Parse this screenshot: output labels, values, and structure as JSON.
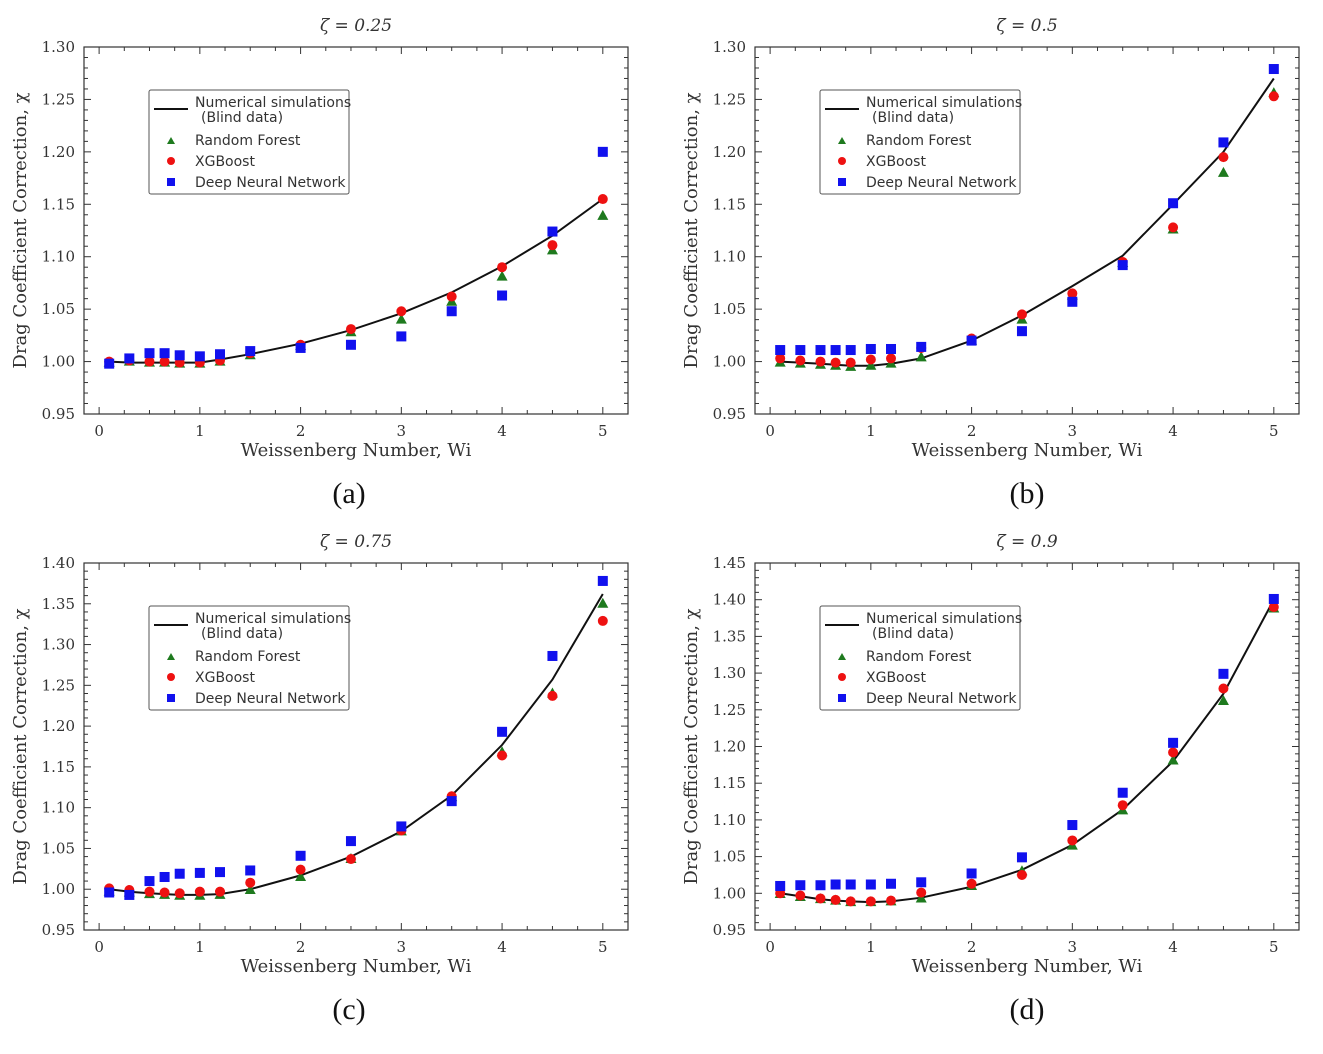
{
  "figure": {
    "panels": [
      {
        "title": "ζ = 0.25",
        "tag": "(a)"
      },
      {
        "title": "ζ = 0.5",
        "tag": "(b)"
      },
      {
        "title": "ζ = 0.75",
        "tag": "(c)"
      },
      {
        "title": "ζ = 0.9",
        "tag": "(d)"
      }
    ]
  },
  "colors": {
    "numerical": "#111111",
    "random_forest": "#1e7a1e",
    "xgboost": "#ee1111",
    "dnn": "#1111ee",
    "axis": "#333333"
  },
  "chart_data": [
    {
      "type": "scatter",
      "title": "ζ = 0.25",
      "tag": "(a)",
      "xlabel": "Weissenberg Number, Wi",
      "ylabel": "Drag Coefficient Correction, χ",
      "xlim": [
        -0.15,
        5.25
      ],
      "ylim": [
        0.95,
        1.3
      ],
      "xticks": [
        0,
        1,
        2,
        3,
        4,
        5
      ],
      "yticks": [
        0.95,
        1.0,
        1.05,
        1.1,
        1.15,
        1.2,
        1.25,
        1.3
      ],
      "legend": {
        "numerical": "Numerical simulations",
        "numerical_sub": "(Blind data)",
        "rf": "Random Forest",
        "xgb": "XGBoost",
        "dnn": "Deep Neural Network"
      },
      "x": [
        0.1,
        0.3,
        0.5,
        0.65,
        0.8,
        1.0,
        1.2,
        1.5,
        2.0,
        2.5,
        3.0,
        3.5,
        4.0,
        4.5,
        5.0
      ],
      "series": [
        {
          "name": "Numerical simulations",
          "values": [
            1.0,
            0.999,
            0.999,
            0.999,
            0.999,
            0.999,
            1.002,
            1.007,
            1.017,
            1.03,
            1.046,
            1.066,
            1.091,
            1.12,
            1.155
          ]
        },
        {
          "name": "Random Forest",
          "values": [
            0.999,
            1.0,
            0.999,
            0.999,
            0.998,
            0.998,
            1.0,
            1.006,
            1.015,
            1.028,
            1.04,
            1.057,
            1.081,
            1.106,
            1.139
          ]
        },
        {
          "name": "XGBoost",
          "values": [
            1.0,
            1.001,
            1.0,
            1.0,
            0.999,
            0.999,
            1.001,
            1.008,
            1.016,
            1.031,
            1.048,
            1.062,
            1.09,
            1.111,
            1.155
          ]
        },
        {
          "name": "Deep Neural Network",
          "values": [
            0.998,
            1.003,
            1.008,
            1.008,
            1.006,
            1.005,
            1.007,
            1.01,
            1.013,
            1.016,
            1.024,
            1.048,
            1.063,
            1.124,
            1.2
          ]
        }
      ]
    },
    {
      "type": "scatter",
      "title": "ζ = 0.5",
      "tag": "(b)",
      "xlabel": "Weissenberg Number, Wi",
      "ylabel": "Drag Coefficient Correction, χ",
      "xlim": [
        -0.15,
        5.25
      ],
      "ylim": [
        0.95,
        1.3
      ],
      "xticks": [
        0,
        1,
        2,
        3,
        4,
        5
      ],
      "yticks": [
        0.95,
        1.0,
        1.05,
        1.1,
        1.15,
        1.2,
        1.25,
        1.3
      ],
      "legend": {
        "numerical": "Numerical simulations",
        "numerical_sub": "(Blind data)",
        "rf": "Random Forest",
        "xgb": "XGBoost",
        "dnn": "Deep Neural Network"
      },
      "x": [
        0.1,
        0.3,
        0.5,
        0.65,
        0.8,
        1.0,
        1.2,
        1.5,
        2.0,
        2.5,
        3.0,
        3.5,
        4.0,
        4.5,
        5.0
      ],
      "series": [
        {
          "name": "Numerical simulations",
          "values": [
            1.0,
            0.999,
            0.998,
            0.997,
            0.996,
            0.996,
            0.998,
            1.003,
            1.02,
            1.044,
            1.072,
            1.101,
            1.15,
            1.2,
            1.27
          ]
        },
        {
          "name": "Random Forest",
          "values": [
            0.999,
            0.998,
            0.997,
            0.996,
            0.995,
            0.996,
            0.998,
            1.004,
            1.02,
            1.04,
            1.063,
            1.094,
            1.126,
            1.18,
            1.256
          ]
        },
        {
          "name": "XGBoost",
          "values": [
            1.003,
            1.001,
            1.0,
            0.999,
            0.999,
            1.002,
            1.003,
            1.013,
            1.022,
            1.045,
            1.065,
            1.095,
            1.128,
            1.195,
            1.253
          ]
        },
        {
          "name": "Deep Neural Network",
          "values": [
            1.011,
            1.011,
            1.011,
            1.011,
            1.011,
            1.012,
            1.012,
            1.014,
            1.02,
            1.029,
            1.057,
            1.092,
            1.151,
            1.209,
            1.279
          ]
        }
      ]
    },
    {
      "type": "scatter",
      "title": "ζ = 0.75",
      "tag": "(c)",
      "xlabel": "Weissenberg Number, Wi",
      "ylabel": "Drag Coefficient Correction, χ",
      "xlim": [
        -0.15,
        5.25
      ],
      "ylim": [
        0.95,
        1.4
      ],
      "xticks": [
        0,
        1,
        2,
        3,
        4,
        5
      ],
      "yticks": [
        0.95,
        1.0,
        1.05,
        1.1,
        1.15,
        1.2,
        1.25,
        1.3,
        1.35,
        1.4
      ],
      "legend": {
        "numerical": "Numerical simulations",
        "numerical_sub": "(Blind data)",
        "rf": "Random Forest",
        "xgb": "XGBoost",
        "dnn": "Deep Neural Network"
      },
      "x": [
        0.1,
        0.3,
        0.5,
        0.65,
        0.8,
        1.0,
        1.2,
        1.5,
        2.0,
        2.5,
        3.0,
        3.5,
        4.0,
        4.5,
        5.0
      ],
      "series": [
        {
          "name": "Numerical simulations",
          "values": [
            1.0,
            0.997,
            0.995,
            0.994,
            0.993,
            0.993,
            0.994,
            1.0,
            1.017,
            1.04,
            1.071,
            1.115,
            1.177,
            1.257,
            1.362
          ]
        },
        {
          "name": "Random Forest",
          "values": [
            0.997,
            0.996,
            0.994,
            0.993,
            0.992,
            0.992,
            0.993,
            0.999,
            1.015,
            1.037,
            1.071,
            1.113,
            1.168,
            1.24,
            1.35
          ]
        },
        {
          "name": "XGBoost",
          "values": [
            1.001,
            0.999,
            0.997,
            0.996,
            0.995,
            0.997,
            0.997,
            1.008,
            1.024,
            1.037,
            1.072,
            1.114,
            1.164,
            1.237,
            1.329
          ]
        },
        {
          "name": "Deep Neural Network",
          "values": [
            0.996,
            0.993,
            1.01,
            1.015,
            1.019,
            1.02,
            1.021,
            1.023,
            1.041,
            1.059,
            1.077,
            1.108,
            1.193,
            1.286,
            1.378
          ]
        }
      ]
    },
    {
      "type": "scatter",
      "title": "ζ = 0.9",
      "tag": "(d)",
      "xlabel": "Weissenberg Number, Wi",
      "ylabel": "Drag Coefficient Correction, χ",
      "xlim": [
        -0.15,
        5.25
      ],
      "ylim": [
        0.95,
        1.45
      ],
      "xticks": [
        0,
        1,
        2,
        3,
        4,
        5
      ],
      "yticks": [
        0.95,
        1.0,
        1.05,
        1.1,
        1.15,
        1.2,
        1.25,
        1.3,
        1.35,
        1.4,
        1.45
      ],
      "legend": {
        "numerical": "Numerical simulations",
        "numerical_sub": "(Blind data)",
        "rf": "Random Forest",
        "xgb": "XGBoost",
        "dnn": "Deep Neural Network"
      },
      "x": [
        0.1,
        0.3,
        0.5,
        0.65,
        0.8,
        1.0,
        1.2,
        1.5,
        2.0,
        2.5,
        3.0,
        3.5,
        4.0,
        4.5,
        5.0
      ],
      "series": [
        {
          "name": "Numerical simulations",
          "values": [
            1.0,
            0.996,
            0.992,
            0.99,
            0.989,
            0.988,
            0.989,
            0.994,
            1.009,
            1.032,
            1.066,
            1.114,
            1.18,
            1.272,
            1.4
          ]
        },
        {
          "name": "Random Forest",
          "values": [
            0.999,
            0.995,
            0.992,
            0.99,
            0.988,
            0.988,
            0.989,
            0.993,
            1.01,
            1.03,
            1.065,
            1.113,
            1.181,
            1.262,
            1.388
          ]
        },
        {
          "name": "XGBoost",
          "values": [
            1.0,
            0.997,
            0.993,
            0.991,
            0.989,
            0.989,
            0.99,
            1.001,
            1.013,
            1.025,
            1.072,
            1.12,
            1.192,
            1.279,
            1.39
          ]
        },
        {
          "name": "Deep Neural Network",
          "values": [
            1.01,
            1.011,
            1.011,
            1.012,
            1.012,
            1.012,
            1.013,
            1.015,
            1.027,
            1.049,
            1.093,
            1.137,
            1.205,
            1.299,
            1.401
          ]
        }
      ]
    }
  ]
}
